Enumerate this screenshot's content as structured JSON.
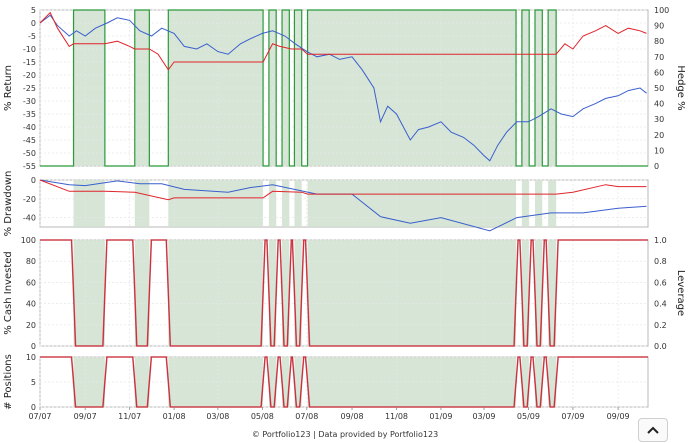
{
  "footer": {
    "text": "© Portfolio123 | Data provided by Portfolio123"
  },
  "colors": {
    "blue": "#3a5fcd",
    "red": "#e0242b",
    "green": "#2a9a3a",
    "shade": "#cfe0cf",
    "grid": "#e6e6e6"
  },
  "chart_data": [
    {
      "type": "line",
      "panel": "return",
      "ylabel": "% Return",
      "y2label": "Hedge %",
      "ylim": [
        -55,
        5
      ],
      "y2lim": [
        0,
        100
      ],
      "yticks": [
        "5",
        "0",
        "-5",
        "-10",
        "-15",
        "-20",
        "-25",
        "-30",
        "-35",
        "-40",
        "-45",
        "-50",
        "-55"
      ],
      "y2ticks": [
        "100",
        "90",
        "80",
        "70",
        "60",
        "50",
        "40",
        "30",
        "20",
        "10",
        "0"
      ],
      "x_ticks": [
        "07/07",
        "09/07",
        "11/07",
        "01/08",
        "03/08",
        "05/08",
        "07/08",
        "09/08",
        "11/08",
        "01/09",
        "03/09",
        "05/09",
        "07/09",
        "09/09"
      ],
      "hedge_periods": [
        [
          "2007-08-16",
          "2007-09-28"
        ],
        [
          "2007-11-08",
          "2007-11-28"
        ],
        [
          "2007-12-24",
          "2008-05-02"
        ],
        [
          "2008-05-10",
          "2008-05-20"
        ],
        [
          "2008-05-28",
          "2008-06-07"
        ],
        [
          "2008-06-14",
          "2008-06-24"
        ],
        [
          "2008-07-02",
          "2009-04-14"
        ],
        [
          "2009-04-22",
          "2009-05-02"
        ],
        [
          "2009-05-10",
          "2009-05-20"
        ],
        [
          "2009-05-28",
          "2009-06-08"
        ]
      ],
      "series": [
        {
          "key": "blue",
          "color": "#3a5fcd",
          "points": [
            [
              "2007-07-01",
              0
            ],
            [
              "2007-07-15",
              3
            ],
            [
              "2007-07-25",
              -1
            ],
            [
              "2007-08-10",
              -5
            ],
            [
              "2007-08-20",
              -3
            ],
            [
              "2007-09-01",
              -5
            ],
            [
              "2007-09-15",
              -2
            ],
            [
              "2007-10-01",
              0
            ],
            [
              "2007-10-15",
              2
            ],
            [
              "2007-11-01",
              1
            ],
            [
              "2007-11-15",
              -3
            ],
            [
              "2007-12-01",
              -5
            ],
            [
              "2007-12-15",
              -2
            ],
            [
              "2008-01-01",
              -4
            ],
            [
              "2008-01-15",
              -9
            ],
            [
              "2008-02-01",
              -10
            ],
            [
              "2008-02-15",
              -8
            ],
            [
              "2008-03-01",
              -11
            ],
            [
              "2008-03-15",
              -12
            ],
            [
              "2008-04-01",
              -8
            ],
            [
              "2008-04-15",
              -6
            ],
            [
              "2008-05-01",
              -4
            ],
            [
              "2008-05-15",
              -3
            ],
            [
              "2008-06-01",
              -5
            ],
            [
              "2008-06-15",
              -8
            ],
            [
              "2008-07-01",
              -11
            ],
            [
              "2008-07-15",
              -13
            ],
            [
              "2008-08-01",
              -12
            ],
            [
              "2008-08-15",
              -14
            ],
            [
              "2008-09-01",
              -13
            ],
            [
              "2008-09-15",
              -18
            ],
            [
              "2008-10-01",
              -25
            ],
            [
              "2008-10-10",
              -38
            ],
            [
              "2008-10-20",
              -32
            ],
            [
              "2008-11-01",
              -35
            ],
            [
              "2008-11-20",
              -45
            ],
            [
              "2008-12-01",
              -41
            ],
            [
              "2008-12-15",
              -40
            ],
            [
              "2009-01-01",
              -38
            ],
            [
              "2009-01-15",
              -42
            ],
            [
              "2009-02-01",
              -44
            ],
            [
              "2009-02-15",
              -47
            ],
            [
              "2009-03-01",
              -51
            ],
            [
              "2009-03-09",
              -53
            ],
            [
              "2009-03-20",
              -47
            ],
            [
              "2009-04-01",
              -42
            ],
            [
              "2009-04-15",
              -38
            ],
            [
              "2009-05-01",
              -38
            ],
            [
              "2009-05-15",
              -36
            ],
            [
              "2009-06-01",
              -33
            ],
            [
              "2009-06-15",
              -35
            ],
            [
              "2009-07-01",
              -36
            ],
            [
              "2009-07-15",
              -33
            ],
            [
              "2009-08-01",
              -31
            ],
            [
              "2009-08-15",
              -29
            ],
            [
              "2009-09-01",
              -28
            ],
            [
              "2009-09-15",
              -26
            ],
            [
              "2009-10-01",
              -25
            ],
            [
              "2009-10-10",
              -27
            ]
          ]
        },
        {
          "key": "red",
          "color": "#e0242b",
          "points": [
            [
              "2007-07-01",
              0
            ],
            [
              "2007-07-15",
              4
            ],
            [
              "2007-07-25",
              -2
            ],
            [
              "2007-08-10",
              -9
            ],
            [
              "2007-08-16",
              -8
            ],
            [
              "2007-09-28",
              -8
            ],
            [
              "2007-10-15",
              -7
            ],
            [
              "2007-11-01",
              -9
            ],
            [
              "2007-11-08",
              -10
            ],
            [
              "2007-11-28",
              -10
            ],
            [
              "2007-12-10",
              -12
            ],
            [
              "2007-12-24",
              -18
            ],
            [
              "2008-01-01",
              -15
            ],
            [
              "2008-05-02",
              -15
            ],
            [
              "2008-05-15",
              -8
            ],
            [
              "2008-05-25",
              -9
            ],
            [
              "2008-06-10",
              -10
            ],
            [
              "2008-06-24",
              -10
            ],
            [
              "2008-07-02",
              -12
            ],
            [
              "2009-04-14",
              -12
            ],
            [
              "2009-04-25",
              -12
            ],
            [
              "2009-06-08",
              -12
            ],
            [
              "2009-06-20",
              -8
            ],
            [
              "2009-07-01",
              -10
            ],
            [
              "2009-07-15",
              -5
            ],
            [
              "2009-08-01",
              -3
            ],
            [
              "2009-08-15",
              -1
            ],
            [
              "2009-09-01",
              -4
            ],
            [
              "2009-09-15",
              -2
            ],
            [
              "2009-10-01",
              -3
            ],
            [
              "2009-10-10",
              -4
            ]
          ]
        }
      ]
    },
    {
      "type": "line",
      "panel": "drawdown",
      "ylabel": "% Drawdown",
      "ylim": [
        -50,
        0
      ],
      "yticks": [
        "0",
        "-20",
        "-40"
      ],
      "series": [
        {
          "key": "blue",
          "color": "#3a5fcd",
          "points": [
            [
              "2007-07-01",
              0
            ],
            [
              "2007-08-10",
              -5
            ],
            [
              "2007-09-01",
              -6
            ],
            [
              "2007-10-15",
              -1
            ],
            [
              "2007-11-15",
              -4
            ],
            [
              "2007-12-15",
              -4
            ],
            [
              "2008-01-15",
              -10
            ],
            [
              "2008-03-15",
              -13
            ],
            [
              "2008-04-15",
              -8
            ],
            [
              "2008-05-15",
              -5
            ],
            [
              "2008-07-15",
              -15
            ],
            [
              "2008-09-01",
              -15
            ],
            [
              "2008-10-10",
              -39
            ],
            [
              "2008-11-20",
              -46
            ],
            [
              "2009-01-01",
              -40
            ],
            [
              "2009-03-09",
              -54
            ],
            [
              "2009-04-15",
              -40
            ],
            [
              "2009-06-01",
              -35
            ],
            [
              "2009-07-15",
              -35
            ],
            [
              "2009-09-01",
              -30
            ],
            [
              "2009-10-10",
              -28
            ]
          ]
        },
        {
          "key": "red",
          "color": "#e0242b",
          "points": [
            [
              "2007-07-01",
              0
            ],
            [
              "2007-08-10",
              -12
            ],
            [
              "2007-09-28",
              -12
            ],
            [
              "2007-11-08",
              -13
            ],
            [
              "2007-12-24",
              -21
            ],
            [
              "2008-01-01",
              -19
            ],
            [
              "2008-05-02",
              -19
            ],
            [
              "2008-05-15",
              -12
            ],
            [
              "2008-06-24",
              -13
            ],
            [
              "2008-07-02",
              -15
            ],
            [
              "2009-04-14",
              -15
            ],
            [
              "2009-06-08",
              -15
            ],
            [
              "2009-07-01",
              -13
            ],
            [
              "2009-08-15",
              -5
            ],
            [
              "2009-09-01",
              -7
            ],
            [
              "2009-10-10",
              -7
            ]
          ]
        }
      ]
    },
    {
      "type": "line",
      "panel": "cash",
      "ylabel": "% Cash Invested",
      "y2label": "Leverage",
      "ylim": [
        0,
        100
      ],
      "y2lim": [
        0,
        1
      ],
      "yticks": [
        "100",
        "80",
        "60",
        "40",
        "20",
        "0"
      ],
      "y2ticks": [
        "1.0",
        "0.8",
        "0.6",
        "0.4",
        "0.2",
        "0.0"
      ],
      "high": 100
    },
    {
      "type": "line",
      "panel": "positions",
      "ylabel": "# Positions",
      "ylim": [
        0,
        10
      ],
      "yticks": [
        "10",
        "5",
        "0"
      ],
      "high": 10
    }
  ]
}
